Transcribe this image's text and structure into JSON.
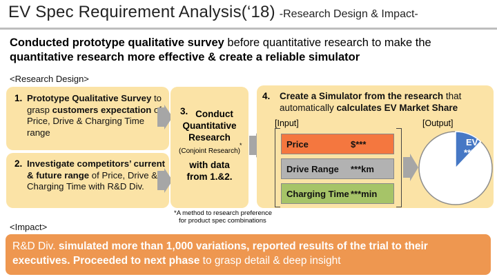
{
  "slide": {
    "title": "EV Spec Requirement Analysis(‘18)",
    "subtitle": "-Research Design & Impact-"
  },
  "intro": {
    "p1_bold": "Conducted prototype qualitative survey",
    "p1_normal": " before quantitative research to make the",
    "p2_bold": "quantitative research more effective & create a reliable simulator"
  },
  "research_design_label": "<Research Design>",
  "step1": {
    "number": "1.",
    "bold1": "Prototype Qualitative Survey",
    "normal1": " to grasp ",
    "bold2": "customers expectation",
    "normal2": " of Price, Drive & Charging Time range"
  },
  "step2": {
    "number": "2.",
    "bold1": "Investigate competitors’ current & future range",
    "normal1": " of Price, Drive & Charging Time with R&D Div."
  },
  "step3": {
    "number": "3.",
    "line1": "Conduct",
    "line2": "Quantitative",
    "line3": "Research",
    "note": "(Conjoint Research)",
    "asterisk": "*",
    "line4": "with data",
    "line5": "from 1.&2."
  },
  "step4": {
    "number": "4.",
    "bold1": "Create a Simulator from the research",
    "normal1": " that",
    "normal2": "automatically ",
    "bold2": "calculates EV Market Share",
    "input_label": "[Input]",
    "output_label": "[Output]",
    "inputs": [
      {
        "label": "Price",
        "value": "$***",
        "color": "#f4773f"
      },
      {
        "label": "Drive Range",
        "value": "***km",
        "color": "#b2b2b2"
      },
      {
        "label": "Charging Time",
        "value": "***min",
        "color": "#a6c468"
      }
    ],
    "pie_label1": "EV",
    "pie_label2": "**%",
    "pie_ev_share": 0.12,
    "pie_ev_color": "#4678c5"
  },
  "footnote": {
    "line1": "*A method to research preference",
    "line2": "for product spec combinations"
  },
  "impact_label": "<Impact>",
  "impact": {
    "n1": "R&D Div. ",
    "b1": "simulated more than 1,000 variations, reported results of the trial to their executives. Proceeded to next phase",
    "n2": " to grasp detail & deep insight"
  }
}
